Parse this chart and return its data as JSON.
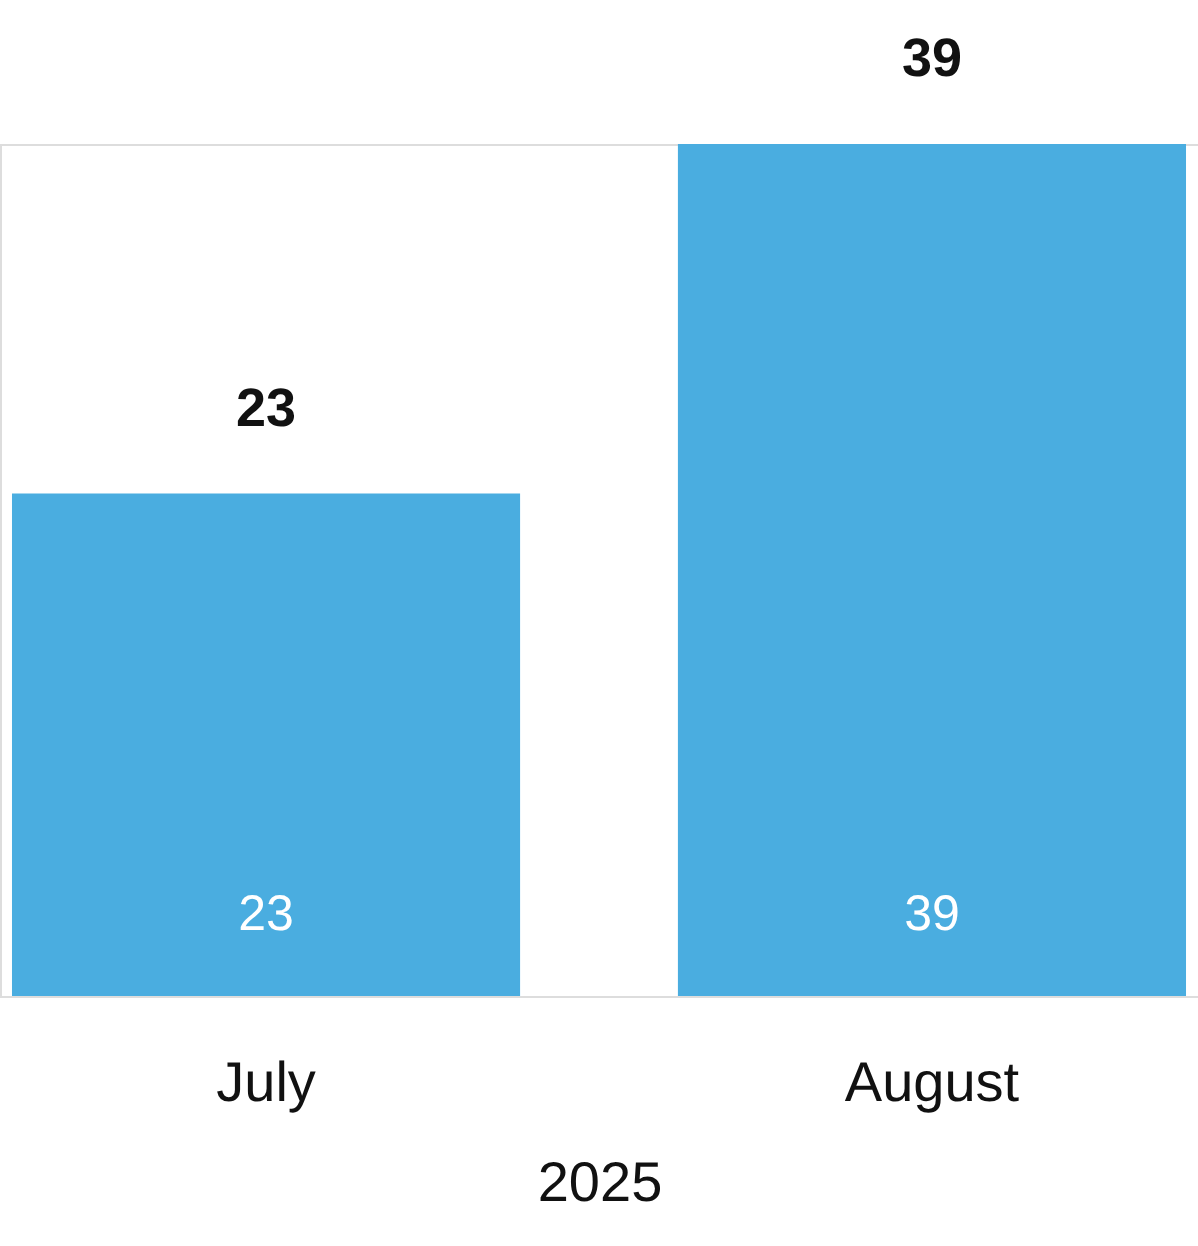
{
  "chart_data": {
    "type": "bar",
    "categories": [
      "July",
      "August"
    ],
    "values": [
      23,
      39
    ],
    "color": "#4aade0",
    "xlabel": "2025",
    "value_labels": [
      "23",
      "39"
    ],
    "annotations": [
      {
        "text": "23",
        "x": "July",
        "y": 23
      },
      {
        "text": "39",
        "x": "August",
        "y": 39
      }
    ],
    "grid": false
  }
}
